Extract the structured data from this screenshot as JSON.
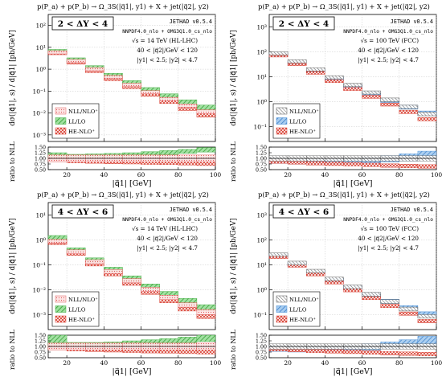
{
  "chart_data": [
    {
      "type": "bar",
      "title": "p(P_a) + p(P_b) → Ω_3S(|q⃗1|, y1) + X + jet(|q⃗2|, y2)",
      "delta_y": "2 < ΔY < 4",
      "generator": "JETHAD v0.5.4",
      "pdf": "NNPDF4.0_nlo + OMG3Q1.0_cs_nlo",
      "energy": "√s = 14 TeV (HL-LHC)",
      "cut_q": "40 < |q⃗2|/GeV < 120",
      "cut_y": "|y1| < 2.5; |y2| < 4.7",
      "xlabel": "|q⃗1| [GeV]",
      "ylabel": "dσ(|q⃗1|, s) / d|q⃗1|  [pb/GeV]",
      "ratio_ylabel": "ratio to NLL",
      "x_ticks": [
        "20",
        "40",
        "60",
        "80",
        "100"
      ],
      "y_ticks": [
        "10⁻³",
        "10⁻²",
        "10⁻¹",
        "10⁰",
        "10¹",
        "10²"
      ],
      "ratio_ticks": [
        "0.50",
        "0.75",
        "1.00",
        "1.25",
        "1.50"
      ],
      "legend": [
        "NLL/NLO⁺",
        "LL/LO",
        "HE-NLO⁺"
      ],
      "legend_position": "lower-left",
      "xlim": [
        10,
        100
      ],
      "ylim_log10": [
        -3.3,
        2.5
      ],
      "ratio_ylim": [
        0.5,
        1.5
      ],
      "band_color": "#3aaa3a",
      "bins": [
        [
          10,
          20
        ],
        [
          20,
          30
        ],
        [
          30,
          40
        ],
        [
          40,
          50
        ],
        [
          50,
          60
        ],
        [
          60,
          70
        ],
        [
          70,
          80
        ],
        [
          80,
          90
        ],
        [
          90,
          100
        ]
      ],
      "series": [
        {
          "name": "NLL/NLO⁺",
          "lower": [
            5.0,
            2.0,
            0.85,
            0.37,
            0.16,
            0.075,
            0.036,
            0.018,
            0.0095
          ],
          "upper": [
            7.0,
            2.8,
            1.2,
            0.52,
            0.23,
            0.105,
            0.052,
            0.026,
            0.014
          ]
        },
        {
          "name": "LL/LO",
          "lower": [
            5.5,
            2.2,
            0.95,
            0.42,
            0.19,
            0.09,
            0.045,
            0.024,
            0.013
          ],
          "upper": [
            8.0,
            3.3,
            1.45,
            0.65,
            0.3,
            0.145,
            0.075,
            0.04,
            0.023
          ]
        },
        {
          "name": "HE-NLO⁺",
          "lower": [
            4.6,
            1.7,
            0.7,
            0.3,
            0.13,
            0.058,
            0.027,
            0.013,
            0.0065
          ],
          "upper": [
            6.0,
            2.3,
            0.95,
            0.41,
            0.18,
            0.08,
            0.038,
            0.019,
            0.0095
          ]
        }
      ],
      "ratio_series": [
        {
          "name": "NLL/NLO⁺",
          "lower": [
            0.85,
            0.85,
            0.85,
            0.85,
            0.85,
            0.85,
            0.85,
            0.85,
            0.85
          ],
          "upper": [
            1.15,
            1.15,
            1.15,
            1.15,
            1.15,
            1.15,
            1.15,
            1.15,
            1.15
          ]
        },
        {
          "name": "LL/LO",
          "lower": [
            0.95,
            1.0,
            1.02,
            1.05,
            1.08,
            1.12,
            1.16,
            1.22,
            1.28
          ],
          "upper": [
            1.25,
            1.18,
            1.2,
            1.22,
            1.25,
            1.3,
            1.35,
            1.4,
            1.48
          ]
        },
        {
          "name": "HE-NLO⁺",
          "lower": [
            0.85,
            0.8,
            0.78,
            0.76,
            0.75,
            0.73,
            0.72,
            0.7,
            0.68
          ],
          "upper": [
            1.05,
            1.0,
            0.98,
            0.96,
            0.94,
            0.92,
            0.9,
            0.89,
            0.87
          ]
        }
      ]
    },
    {
      "type": "bar",
      "title": "p(P_a) + p(P_b) → Ω_3S(|q⃗1|, y1) + X + jet(|q⃗2|, y2)",
      "delta_y": "2 < ΔY < 4",
      "generator": "JETHAD v0.5.4",
      "pdf": "NNPDF4.0_nlo + OMG3Q1.0_cs_nlo",
      "energy": "√s = 100 TeV (FCC)",
      "cut_q": "40 < |q⃗2|/GeV < 120",
      "cut_y": "|y1| < 2.5; |y2| < 4.7",
      "xlabel": "|q⃗1| [GeV]",
      "ylabel": "dσ(|q⃗1|, s) / d|q⃗1|  [pb/GeV]",
      "ratio_ylabel": "ratio to NLL",
      "x_ticks": [
        "20",
        "40",
        "60",
        "80",
        "100"
      ],
      "y_ticks": [
        "10⁻¹",
        "10⁰",
        "10¹",
        "10²",
        "10³"
      ],
      "ratio_ticks": [
        "0.50",
        "0.75",
        "1.00",
        "1.25",
        "1.50"
      ],
      "legend": [
        "NLL/NLO⁺",
        "LL/LO",
        "HE-NLO⁺"
      ],
      "legend_position": "lower-left",
      "xlim": [
        10,
        100
      ],
      "ylim_log10": [
        -1.6,
        3.5
      ],
      "ratio_ylim": [
        0.5,
        1.5
      ],
      "band_color": "#3a86d4",
      "bins": [
        [
          10,
          20
        ],
        [
          20,
          30
        ],
        [
          30,
          40
        ],
        [
          40,
          50
        ],
        [
          50,
          60
        ],
        [
          60,
          70
        ],
        [
          70,
          80
        ],
        [
          80,
          90
        ],
        [
          90,
          100
        ]
      ],
      "series": [
        {
          "name": "NLL/NLO⁺",
          "lower": [
            75,
            36,
            17,
            8.2,
            4.0,
            2.0,
            1.0,
            0.52,
            0.27
          ],
          "upper": [
            100,
            48,
            23,
            11,
            5.4,
            2.7,
            1.4,
            0.72,
            0.38
          ]
        },
        {
          "name": "LL/LO",
          "lower": [
            65,
            30,
            14,
            6.8,
            3.4,
            1.75,
            0.92,
            0.5,
            0.28
          ],
          "upper": [
            90,
            42,
            20,
            9.6,
            4.8,
            2.5,
            1.3,
            0.72,
            0.42
          ]
        },
        {
          "name": "HE-NLO⁺",
          "lower": [
            62,
            28,
            12.5,
            5.8,
            2.8,
            1.35,
            0.66,
            0.33,
            0.17
          ],
          "upper": [
            82,
            37,
            16.5,
            7.6,
            3.7,
            1.8,
            0.88,
            0.45,
            0.23
          ]
        }
      ],
      "ratio_series": [
        {
          "name": "NLL/NLO⁺",
          "lower": [
            0.88,
            0.88,
            0.88,
            0.88,
            0.88,
            0.88,
            0.88,
            0.88,
            0.88
          ],
          "upper": [
            1.12,
            1.12,
            1.12,
            1.12,
            1.12,
            1.12,
            1.12,
            1.12,
            1.12
          ]
        },
        {
          "name": "LL/LO",
          "lower": [
            0.78,
            0.74,
            0.74,
            0.76,
            0.78,
            0.8,
            0.84,
            0.88,
            0.95
          ],
          "upper": [
            1.0,
            0.98,
            0.98,
            1.0,
            1.02,
            1.06,
            1.12,
            1.2,
            1.32
          ]
        },
        {
          "name": "HE-NLO⁺",
          "lower": [
            0.78,
            0.74,
            0.7,
            0.68,
            0.66,
            0.63,
            0.6,
            0.58,
            0.56
          ],
          "upper": [
            0.95,
            0.9,
            0.86,
            0.84,
            0.82,
            0.79,
            0.76,
            0.74,
            0.72
          ]
        }
      ]
    },
    {
      "type": "bar",
      "title": "p(P_a) + p(P_b) → Ω_3S(|q⃗1|, y1) + X + jet(|q⃗2|, y2)",
      "delta_y": "4 < ΔY < 6",
      "generator": "JETHAD v0.5.4",
      "pdf": "NNPDF4.0_nlo + OMG3Q1.0_cs_nlo",
      "energy": "√s = 14 TeV (HL-LHC)",
      "cut_q": "40 < |q⃗2|/GeV < 120",
      "cut_y": "|y1| < 2.5; |y2| < 4.7",
      "xlabel": "|q⃗1| [GeV]",
      "ylabel": "dσ(|q⃗1|, s) / d|q⃗1|  [pb/GeV]",
      "ratio_ylabel": "ratio to NLL",
      "x_ticks": [
        "20",
        "40",
        "60",
        "80",
        "100"
      ],
      "y_ticks": [
        "10⁻³",
        "10⁻²",
        "10⁻¹",
        "10⁰",
        "10¹"
      ],
      "ratio_ticks": [
        "0.50",
        "0.75",
        "1.00",
        "1.25",
        "1.50"
      ],
      "legend": [
        "NLL/NLO⁺",
        "LL/LO",
        "HE-NLO⁺"
      ],
      "legend_position": "lower-left",
      "xlim": [
        10,
        100
      ],
      "ylim_log10": [
        -3.6,
        1.5
      ],
      "ratio_ylim": [
        0.5,
        1.5
      ],
      "band_color": "#3aaa3a",
      "bins": [
        [
          10,
          20
        ],
        [
          20,
          30
        ],
        [
          30,
          40
        ],
        [
          40,
          50
        ],
        [
          50,
          60
        ],
        [
          60,
          70
        ],
        [
          70,
          80
        ],
        [
          80,
          90
        ],
        [
          90,
          100
        ]
      ],
      "series": [
        {
          "name": "NLL/NLO⁺",
          "lower": [
            0.75,
            0.28,
            0.11,
            0.045,
            0.019,
            0.0085,
            0.004,
            0.002,
            0.001
          ],
          "upper": [
            1.05,
            0.4,
            0.16,
            0.065,
            0.028,
            0.0125,
            0.006,
            0.003,
            0.0016
          ]
        },
        {
          "name": "LL/LO",
          "lower": [
            0.85,
            0.3,
            0.12,
            0.05,
            0.022,
            0.01,
            0.005,
            0.0026,
            0.0014
          ],
          "upper": [
            1.5,
            0.48,
            0.19,
            0.08,
            0.036,
            0.017,
            0.0085,
            0.0045,
            0.0025
          ]
        },
        {
          "name": "HE-NLO⁺",
          "lower": [
            0.65,
            0.24,
            0.09,
            0.036,
            0.015,
            0.0065,
            0.003,
            0.0014,
            0.0007
          ],
          "upper": [
            0.9,
            0.33,
            0.125,
            0.05,
            0.021,
            0.0092,
            0.0043,
            0.002,
            0.001
          ]
        }
      ],
      "ratio_series": [
        {
          "name": "NLL/NLO⁺",
          "lower": [
            0.85,
            0.85,
            0.85,
            0.85,
            0.85,
            0.85,
            0.85,
            0.85,
            0.85
          ],
          "upper": [
            1.15,
            1.15,
            1.15,
            1.15,
            1.15,
            1.15,
            1.15,
            1.15,
            1.15
          ]
        },
        {
          "name": "LL/LO",
          "lower": [
            1.0,
            0.95,
            0.95,
            0.98,
            1.0,
            1.05,
            1.1,
            1.15,
            1.22
          ],
          "upper": [
            1.5,
            1.18,
            1.18,
            1.2,
            1.25,
            1.3,
            1.35,
            1.42,
            1.5
          ]
        },
        {
          "name": "HE-NLO⁺",
          "lower": [
            0.85,
            0.8,
            0.77,
            0.75,
            0.73,
            0.71,
            0.7,
            0.68,
            0.66
          ],
          "upper": [
            1.05,
            1.0,
            0.97,
            0.95,
            0.93,
            0.91,
            0.9,
            0.88,
            0.86
          ]
        }
      ]
    },
    {
      "type": "bar",
      "title": "p(P_a) + p(P_b) → Ω_3S(|q⃗1|, y1) + X + jet(|q⃗2|, y2)",
      "delta_y": "4 < ΔY < 6",
      "generator": "JETHAD v0.5.4",
      "pdf": "NNPDF4.0_nlo + OMG3Q1.0_cs_nlo",
      "energy": "√s = 100 TeV (FCC)",
      "cut_q": "40 < |q⃗2|/GeV < 120",
      "cut_y": "|y1| < 2.5; |y2| < 4.7",
      "xlabel": "|q⃗1| [GeV]",
      "ylabel": "dσ(|q⃗1|, s) / d|q⃗1|  [pb/GeV]",
      "ratio_ylabel": "ratio to NLL",
      "x_ticks": [
        "20",
        "40",
        "60",
        "80",
        "100"
      ],
      "y_ticks": [
        "10⁻¹",
        "10⁰",
        "10¹",
        "10²",
        "10³"
      ],
      "ratio_ticks": [
        "0.50",
        "0.75",
        "1.00",
        "1.25",
        "1.50"
      ],
      "legend": [
        "NLL/NLO⁺",
        "LL/LO",
        "HE-NLO⁺"
      ],
      "legend_position": "lower-left",
      "xlim": [
        10,
        100
      ],
      "ylim_log10": [
        -1.6,
        3.5
      ],
      "ratio_ylim": [
        0.5,
        1.5
      ],
      "band_color": "#3a86d4",
      "bins": [
        [
          10,
          20
        ],
        [
          20,
          30
        ],
        [
          30,
          40
        ],
        [
          40,
          50
        ],
        [
          50,
          60
        ],
        [
          60,
          70
        ],
        [
          70,
          80
        ],
        [
          80,
          90
        ],
        [
          90,
          100
        ]
      ],
      "series": [
        {
          "name": "NLL/NLO⁺",
          "lower": [
            22,
            10,
            4.8,
            2.3,
            1.1,
            0.55,
            0.28,
            0.14,
            0.072
          ],
          "upper": [
            30,
            14,
            6.6,
            3.2,
            1.55,
            0.78,
            0.4,
            0.2,
            0.1
          ]
        },
        {
          "name": "LL/LO",
          "lower": [
            19,
            8.8,
            4.2,
            2.0,
            1.0,
            0.52,
            0.28,
            0.15,
            0.082
          ],
          "upper": [
            27,
            12.5,
            6.0,
            2.9,
            1.45,
            0.76,
            0.41,
            0.23,
            0.13
          ]
        },
        {
          "name": "HE-NLO⁺",
          "lower": [
            18,
            8.0,
            3.6,
            1.7,
            0.82,
            0.4,
            0.19,
            0.094,
            0.047
          ],
          "upper": [
            24,
            10.6,
            4.8,
            2.25,
            1.08,
            0.53,
            0.26,
            0.128,
            0.064
          ]
        }
      ],
      "ratio_series": [
        {
          "name": "NLL/NLO⁺",
          "lower": [
            0.88,
            0.88,
            0.88,
            0.88,
            0.88,
            0.88,
            0.88,
            0.88,
            0.88
          ],
          "upper": [
            1.12,
            1.12,
            1.12,
            1.12,
            1.12,
            1.12,
            1.12,
            1.12,
            1.12
          ]
        },
        {
          "name": "LL/LO",
          "lower": [
            0.78,
            0.75,
            0.75,
            0.77,
            0.8,
            0.84,
            0.9,
            0.96,
            1.05
          ],
          "upper": [
            1.02,
            1.0,
            1.0,
            1.02,
            1.06,
            1.12,
            1.2,
            1.3,
            1.45
          ]
        },
        {
          "name": "HE-NLO⁺",
          "lower": [
            0.8,
            0.76,
            0.72,
            0.7,
            0.68,
            0.65,
            0.62,
            0.6,
            0.58
          ],
          "upper": [
            0.96,
            0.92,
            0.88,
            0.86,
            0.84,
            0.81,
            0.78,
            0.76,
            0.74
          ]
        }
      ]
    }
  ]
}
